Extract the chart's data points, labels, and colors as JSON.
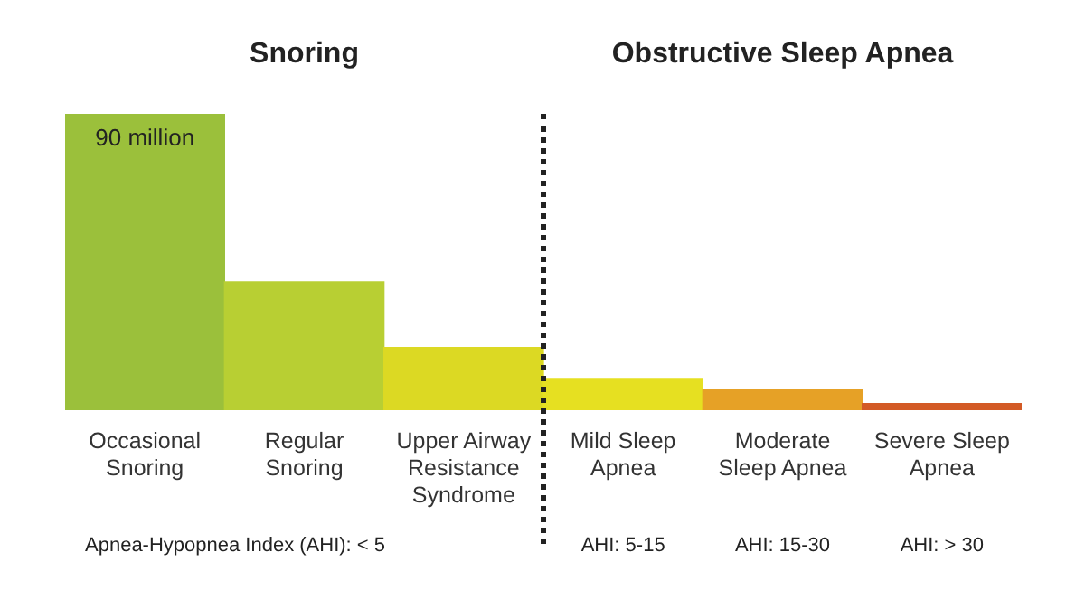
{
  "chart_data": {
    "type": "bar",
    "tick_labels": "x",
    "categories": [
      "Occasional Snoring",
      "Regular Snoring",
      "Upper Airway Resistance Syndrome",
      "Mild Sleep Apnea",
      "Moderate Sleep Apnea",
      "Severe Sleep Apnea"
    ],
    "values": [
      90,
      39,
      19,
      9.6,
      6.3,
      2
    ],
    "colors": [
      "#9bc03b",
      "#b8cf33",
      "#dcd923",
      "#e6e021",
      "#e6a126",
      "#d35a25"
    ],
    "value_labels": [
      "90 million",
      null,
      null,
      null,
      null,
      null
    ],
    "annotations": [
      "Snoring",
      "Obstructive Sleep Apnea",
      "Apnea-Hypopnea Index (AHI): < 5",
      "AHI: 5-15",
      "AHI: 15-30",
      "AHI: > 30"
    ],
    "grid": false,
    "legend": false
  }
}
